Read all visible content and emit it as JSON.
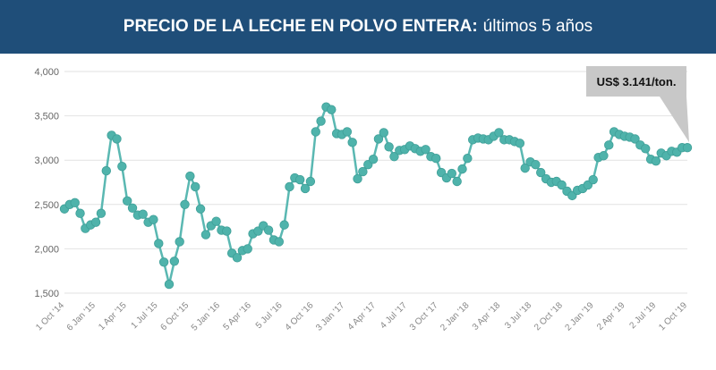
{
  "header": {
    "title_bold": "PRECIO DE LA LECHE EN POLVO ENTERA:",
    "title_rest": "últimos 5 años"
  },
  "colors": {
    "header_bg": "#1f4e79",
    "line": "#5ab8b2",
    "marker": "#4fb3ab",
    "grid": "#e2e2e2",
    "callout_bg": "#c8c8c8"
  },
  "chart_data": {
    "type": "line",
    "ylim": [
      1500,
      4000
    ],
    "yticks": [
      "1,500",
      "2,000",
      "2,500",
      "3,000",
      "3,500",
      "4,000"
    ],
    "ytick_values": [
      1500,
      2000,
      2500,
      3000,
      3500,
      4000
    ],
    "xticks": [
      "1 Oct '14",
      "6 Jan '15",
      "1 Apr '15",
      "1 Jul '15",
      "6 Oct '15",
      "5 Jan '16",
      "5 Apr '16",
      "5 Jul '16",
      "4 Oct '16",
      "3 Jan '17",
      "4 Apr '17",
      "4 Jul '17",
      "3 Oct '17",
      "2 Jan '18",
      "3 Apr '18",
      "3 Jul '18",
      "2 Oct '18",
      "2 Jan '19",
      "2 Apr '19",
      "2 Jul '19",
      "1 Oct '19"
    ],
    "series": [
      {
        "values": [
          2450,
          2500,
          2520,
          2400,
          2230,
          2270,
          2300,
          2400,
          2880,
          3280,
          3240,
          2930,
          2540,
          2460,
          2380,
          2390,
          2300,
          2330,
          2060,
          1850,
          1600,
          1860,
          2080,
          2500,
          2820,
          2700,
          2450,
          2160,
          2260,
          2310,
          2210,
          2200,
          1950,
          1900,
          1980,
          2000,
          2170,
          2200,
          2260,
          2210,
          2100,
          2080,
          2270,
          2700,
          2800,
          2780,
          2680,
          2760,
          3320,
          3440,
          3600,
          3570,
          3300,
          3290,
          3320,
          3200,
          2790,
          2870,
          2950,
          3010,
          3240,
          3310,
          3150,
          3040,
          3110,
          3120,
          3160,
          3130,
          3100,
          3120,
          3040,
          3020,
          2860,
          2800,
          2850,
          2760,
          2900,
          3020,
          3230,
          3250,
          3240,
          3230,
          3270,
          3310,
          3230,
          3230,
          3210,
          3190,
          2910,
          2980,
          2950,
          2860,
          2790,
          2750,
          2760,
          2720,
          2650,
          2600,
          2660,
          2680,
          2720,
          2780,
          3030,
          3050,
          3170,
          3320,
          3290,
          3270,
          3260,
          3240,
          3170,
          3130,
          3010,
          2990,
          3080,
          3050,
          3100,
          3090,
          3141,
          3141
        ],
        "color": "#5ab8b2"
      }
    ],
    "annotation": "US$ 3.141/ton.",
    "grid": true
  }
}
